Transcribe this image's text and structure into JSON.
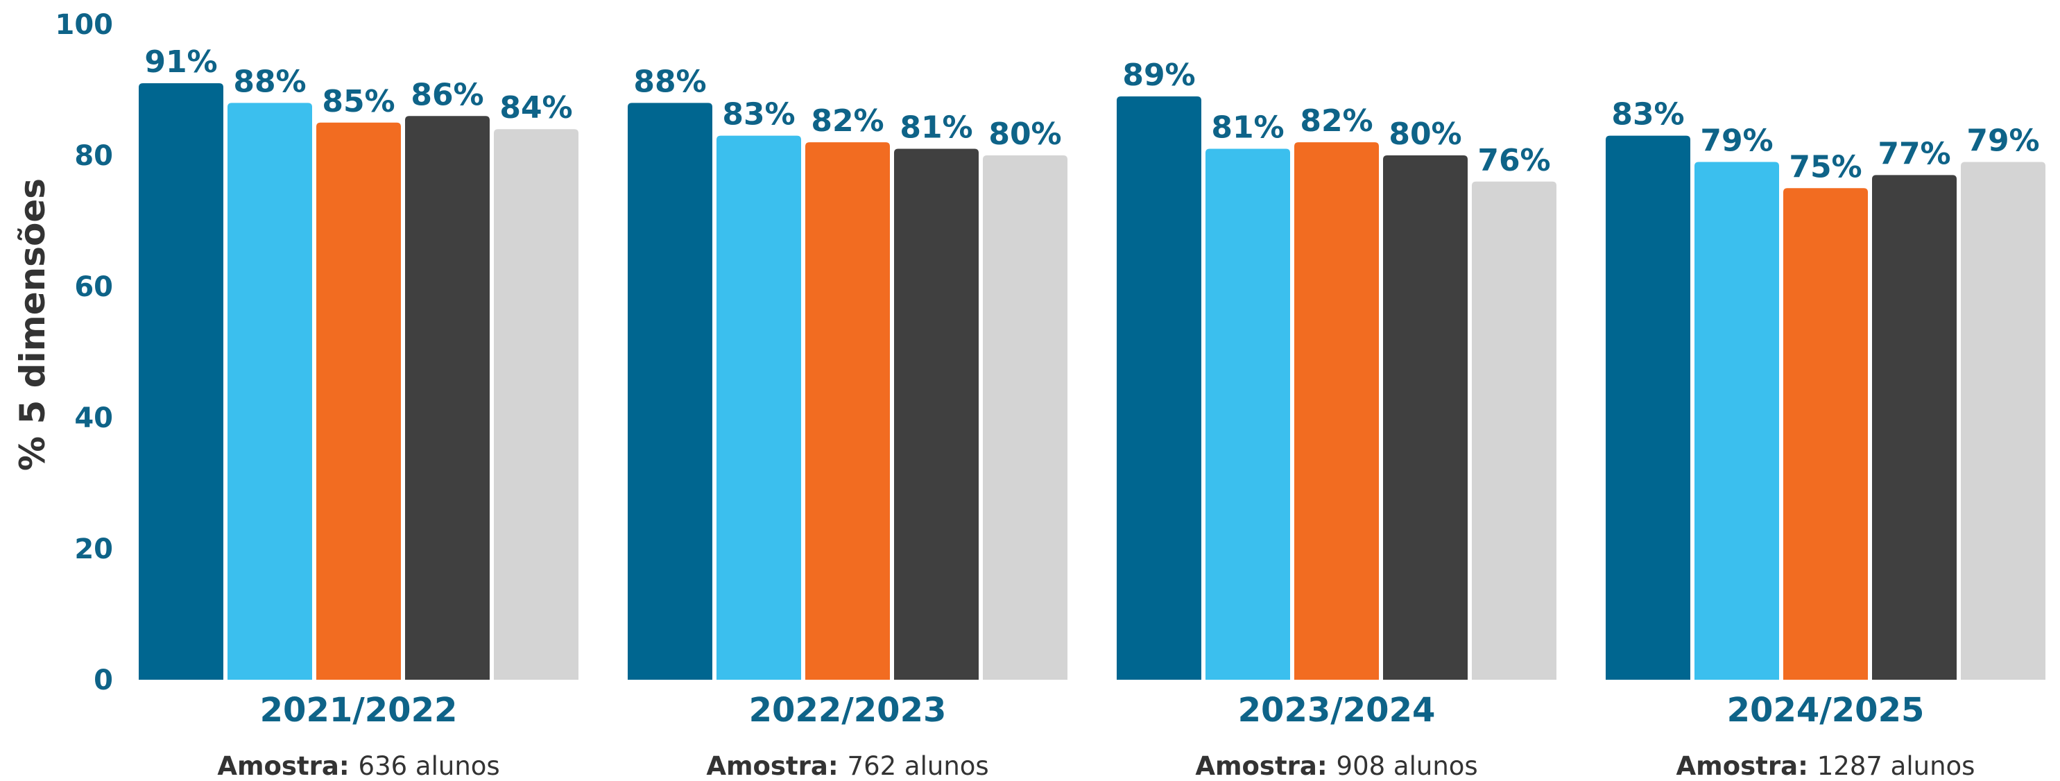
{
  "colors": {
    "axis_text": "#0e6388",
    "ylabel_text": "#333333",
    "sample_text": "#333333",
    "series": [
      "#006690",
      "#3bbfee",
      "#f26c21",
      "#404040",
      "#d4d4d4"
    ]
  },
  "chart_data": {
    "type": "bar",
    "ylabel": "% 5 dimensões",
    "ylim": [
      0,
      100
    ],
    "yticks": [
      0,
      20,
      40,
      60,
      80,
      100
    ],
    "grid": false,
    "legend": "none",
    "categories": [
      "2021/2022",
      "2022/2023",
      "2023/2024",
      "2024/2025"
    ],
    "values": [
      [
        91,
        88,
        85,
        86,
        84
      ],
      [
        88,
        83,
        82,
        81,
        80
      ],
      [
        89,
        81,
        82,
        80,
        76
      ],
      [
        83,
        79,
        75,
        77,
        79
      ]
    ],
    "value_suffix": "%",
    "sample_prefix": "Amostra:",
    "samples": [
      "636 alunos",
      "762 alunos",
      "908 alunos",
      "1287 alunos"
    ]
  }
}
